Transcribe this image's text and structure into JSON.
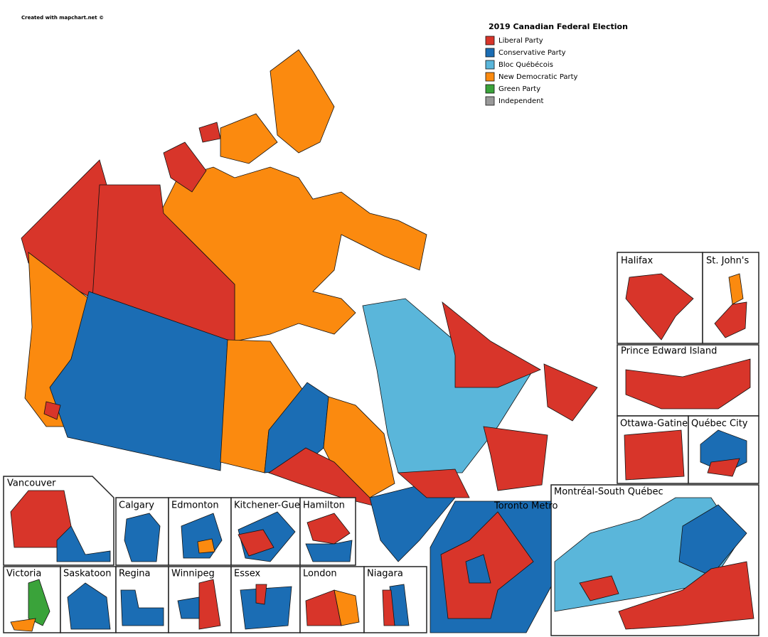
{
  "credit": "Created with mapchart.net ©",
  "legend": {
    "title": "2019 Canadian Federal Election",
    "items": [
      {
        "label": "Liberal Party",
        "color": "#d8352a"
      },
      {
        "label": "Conservative Party",
        "color": "#1b6db4"
      },
      {
        "label": "Bloc Québécois",
        "color": "#5ab6da"
      },
      {
        "label": "New Democratic Party",
        "color": "#fb8a0f"
      },
      {
        "label": "Green Party",
        "color": "#3aa33a"
      },
      {
        "label": "Independent",
        "color": "#999999"
      }
    ]
  },
  "insets": [
    "Halifax",
    "St. John's",
    "Prince Edward Island",
    "Ottawa-Gatineau",
    "Québec City",
    "Montréal-South Québec",
    "Toronto Metro",
    "Vancouver",
    "Calgary",
    "Edmonton",
    "Kitchener-Guelph",
    "Hamilton",
    "Victoria",
    "Saskatoon",
    "Regina",
    "Winnipeg",
    "Essex",
    "London",
    "Niagara"
  ]
}
